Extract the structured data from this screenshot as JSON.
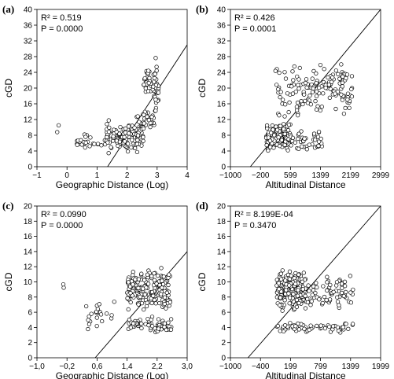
{
  "figure": {
    "background": "#ffffff",
    "axis_color": "#000000",
    "marker_color": "#000000"
  },
  "chart_data": [
    {
      "panel": "(a)",
      "type": "scatter",
      "xlabel": "Geographic Distance (Log)",
      "ylabel": "cGD",
      "xlim": [
        -1,
        4
      ],
      "ylim": [
        0,
        40
      ],
      "xticks": [
        -1,
        0,
        1,
        2,
        3,
        4
      ],
      "xtick_labels": [
        "−1",
        "0",
        "1",
        "2",
        "3",
        "4"
      ],
      "yticks": [
        0,
        4,
        8,
        12,
        16,
        20,
        24,
        28,
        32,
        36,
        40
      ],
      "ytick_labels": [
        "0",
        "4",
        "8",
        "12",
        "16",
        "20",
        "24",
        "28",
        "32",
        "36",
        "40"
      ],
      "stats": [
        "R² = 0.519",
        "P = 0.0000"
      ],
      "regression_line": {
        "x": [
          1.35,
          4.0
        ],
        "y": [
          0,
          31
        ]
      },
      "points": {
        "seed": 11,
        "clusters": [
          {
            "n": 2,
            "x": [
              -0.35,
              -0.25
            ],
            "y": [
              7.5,
              13
            ]
          },
          {
            "n": 26,
            "x": [
              0.3,
              1.3
            ],
            "y": [
              3.5,
              9
            ]
          },
          {
            "n": 140,
            "x": [
              1.3,
              2.55
            ],
            "y": [
              3,
              12
            ]
          },
          {
            "n": 28,
            "x": [
              2.3,
              2.9
            ],
            "y": [
              8,
              16
            ]
          },
          {
            "n": 30,
            "x": [
              2.55,
              2.8
            ],
            "y": [
              18,
              26
            ]
          },
          {
            "n": 30,
            "x": [
              2.85,
              3.05
            ],
            "y": [
              12,
              29
            ]
          }
        ]
      }
    },
    {
      "panel": "(b)",
      "type": "scatter",
      "xlabel": "Altitudinal Distance",
      "ylabel": "cGD",
      "xlim": [
        -1000,
        2999
      ],
      "ylim": [
        0,
        40
      ],
      "xticks": [
        -1000,
        -200,
        599,
        1399,
        2199,
        2999
      ],
      "xtick_labels": [
        "−1000",
        "−200",
        "599",
        "1399",
        "2199",
        "2999"
      ],
      "yticks": [
        0,
        4,
        8,
        12,
        16,
        20,
        24,
        28,
        32,
        36,
        40
      ],
      "ytick_labels": [
        "0",
        "4",
        "8",
        "12",
        "16",
        "20",
        "24",
        "28",
        "32",
        "36",
        "40"
      ],
      "stats": [
        "R² = 0.426",
        "P = 0.0001"
      ],
      "regression_line": {
        "x": [
          -470,
          2999
        ],
        "y": [
          0,
          40
        ]
      },
      "points": {
        "seed": 23,
        "clusters": [
          {
            "n": 170,
            "x": [
              -50,
              600
            ],
            "y": [
              3,
              12
            ]
          },
          {
            "n": 40,
            "x": [
              600,
              1450
            ],
            "y": [
              3,
              10
            ]
          },
          {
            "n": 60,
            "x": [
              150,
              1150
            ],
            "y": [
              10,
              28
            ]
          },
          {
            "n": 90,
            "x": [
              1150,
              2250
            ],
            "y": [
              12,
              29
            ]
          }
        ]
      }
    },
    {
      "panel": "(c)",
      "type": "scatter",
      "xlabel": "Geographic Distance (Log)",
      "ylabel": "cGD",
      "xlim": [
        -1.0,
        3.0
      ],
      "ylim": [
        0,
        20
      ],
      "xticks": [
        -1.0,
        -0.2,
        0.6,
        1.4,
        2.2,
        3.0
      ],
      "xtick_labels": [
        "−1,0",
        "−0,2",
        "0,6",
        "1,4",
        "2,2",
        "3,0"
      ],
      "yticks": [
        0,
        2,
        4,
        6,
        8,
        10,
        12,
        14,
        16,
        18,
        20
      ],
      "ytick_labels": [
        "0",
        "2",
        "4",
        "6",
        "8",
        "10",
        "12",
        "14",
        "16",
        "18",
        "20"
      ],
      "stats": [
        "R² = 0.0990",
        "P = 0.0000"
      ],
      "regression_line": {
        "x": [
          0.55,
          3.0
        ],
        "y": [
          0,
          14
        ]
      },
      "points": {
        "seed": 37,
        "clusters": [
          {
            "n": 2,
            "x": [
              -0.3,
              -0.25
            ],
            "y": [
              8,
              12.5
            ]
          },
          {
            "n": 24,
            "x": [
              0.3,
              1.2
            ],
            "y": [
              3,
              8
            ]
          },
          {
            "n": 70,
            "x": [
              1.4,
              2.6
            ],
            "y": [
              3,
              5.5
            ]
          },
          {
            "n": 200,
            "x": [
              1.4,
              2.55
            ],
            "y": [
              5.5,
              12.3
            ]
          }
        ]
      }
    },
    {
      "panel": "(d)",
      "type": "scatter",
      "xlabel": "Altitudinal Distance",
      "ylabel": "cGD",
      "xlim": [
        -1000,
        1999
      ],
      "ylim": [
        0,
        20
      ],
      "xticks": [
        -1000,
        -400,
        199,
        799,
        1399,
        1999
      ],
      "xtick_labels": [
        "−1000",
        "−400",
        "199",
        "799",
        "1399",
        "1999"
      ],
      "yticks": [
        0,
        2,
        4,
        6,
        8,
        10,
        12,
        14,
        16,
        18,
        20
      ],
      "ytick_labels": [
        "0",
        "2",
        "4",
        "6",
        "8",
        "10",
        "12",
        "14",
        "16",
        "18",
        "20"
      ],
      "stats": [
        "R² = 8.199E-04",
        "P = 0.3470"
      ],
      "regression_line": {
        "x": [
          -650,
          1999
        ],
        "y": [
          0,
          20
        ]
      },
      "points": {
        "seed": 53,
        "clusters": [
          {
            "n": 60,
            "x": [
              -80,
              1450
            ],
            "y": [
              3,
              5
            ]
          },
          {
            "n": 210,
            "x": [
              -80,
              500
            ],
            "y": [
              5.5,
              12.5
            ]
          },
          {
            "n": 70,
            "x": [
              500,
              1450
            ],
            "y": [
              5.5,
              11.5
            ]
          }
        ]
      }
    }
  ]
}
